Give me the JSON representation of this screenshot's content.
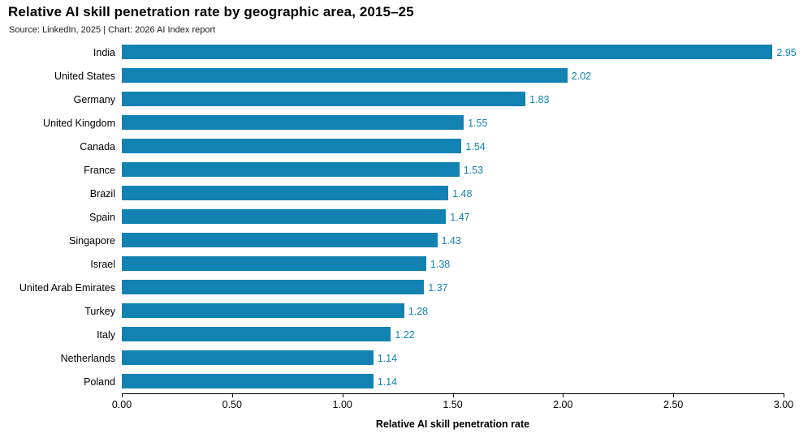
{
  "header": {
    "title": "Relative AI skill penetration rate by geographic area, 2015–25",
    "source": "Source: LinkedIn, 2025 | Chart: 2026 AI Index report"
  },
  "chart_data": {
    "type": "bar",
    "orientation": "horizontal",
    "title": "Relative AI skill penetration rate by geographic area, 2015–25",
    "subtitle": "Source: LinkedIn, 2025 | Chart: 2026 AI Index report",
    "categories": [
      "India",
      "United States",
      "Germany",
      "United Kingdom",
      "Canada",
      "France",
      "Brazil",
      "Spain",
      "Singapore",
      "Israel",
      "United Arab Emirates",
      "Turkey",
      "Italy",
      "Netherlands",
      "Poland"
    ],
    "values": [
      2.95,
      2.02,
      1.83,
      1.55,
      1.54,
      1.53,
      1.48,
      1.47,
      1.43,
      1.38,
      1.37,
      1.28,
      1.22,
      1.14,
      1.14
    ],
    "value_labels": [
      "2.95",
      "2.02",
      "1.83",
      "1.55",
      "1.54",
      "1.53",
      "1.48",
      "1.47",
      "1.43",
      "1.38",
      "1.37",
      "1.28",
      "1.22",
      "1.14",
      "1.14"
    ],
    "xlabel": "Relative AI skill penetration rate",
    "ylabel": "",
    "xlim": [
      0,
      3.0
    ],
    "xticks": [
      0,
      0.5,
      1.0,
      1.5,
      2.0,
      2.5,
      3.0
    ],
    "xtick_labels": [
      "0.00",
      "0.50",
      "1.00",
      "1.50",
      "2.00",
      "2.50",
      "3.00"
    ],
    "grid": false,
    "legend": false,
    "bar_color": "#1282b2",
    "value_label_color": "#1282b2"
  }
}
